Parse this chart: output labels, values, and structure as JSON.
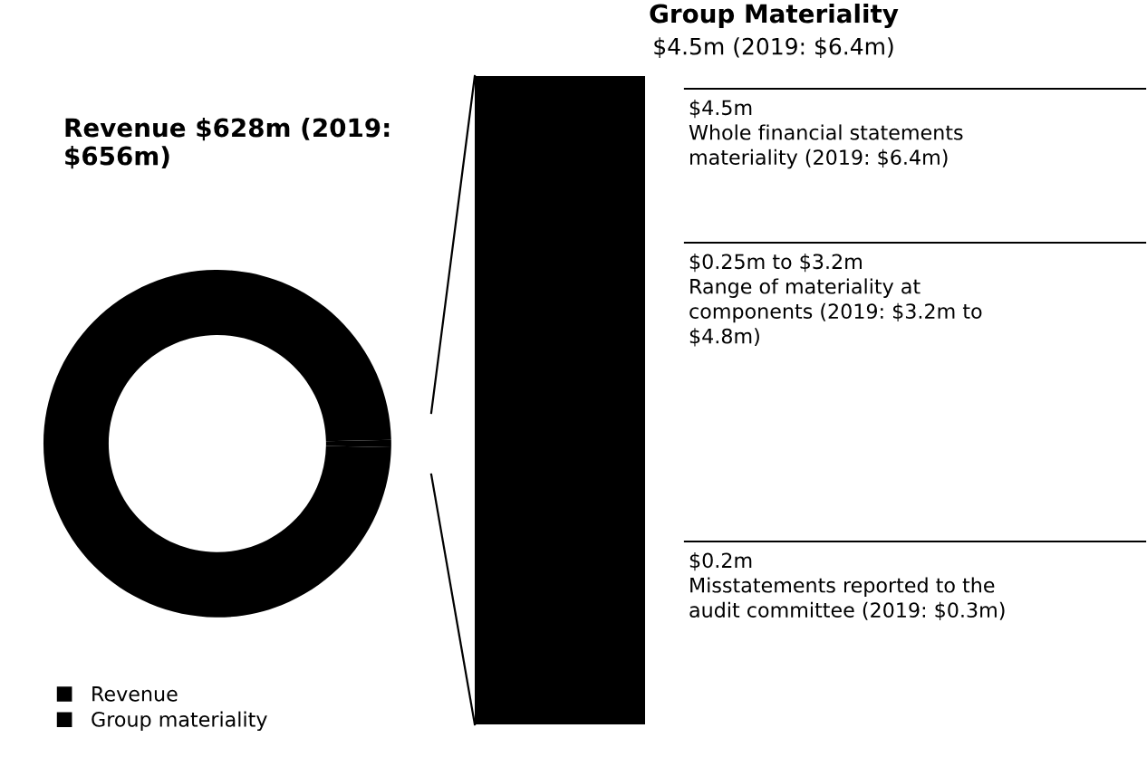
{
  "chart_data": [
    {
      "type": "donut",
      "title": "Revenue $628m (2019:\n$656m)",
      "categories": [
        "Revenue",
        "Group materiality"
      ],
      "values": [
        99.3,
        0.7
      ],
      "colors": [
        "#000000",
        "#000000"
      ],
      "legend": "bottom left"
    },
    {
      "type": "other",
      "title": "Group Materiality",
      "subtitle": "$4.5m (2019: $6.4m)",
      "annotations": [
        "$4.5m\nWhole financial statements\nmateriality (2019: $6.4m)",
        "$0.25m to $3.2m\nRange of materiality at\ncomponents (2019: $3.2m to\n$4.8m)",
        "$0.2m\nMisstatements reported to the\naudit committee (2019: $0.3m)"
      ]
    }
  ]
}
